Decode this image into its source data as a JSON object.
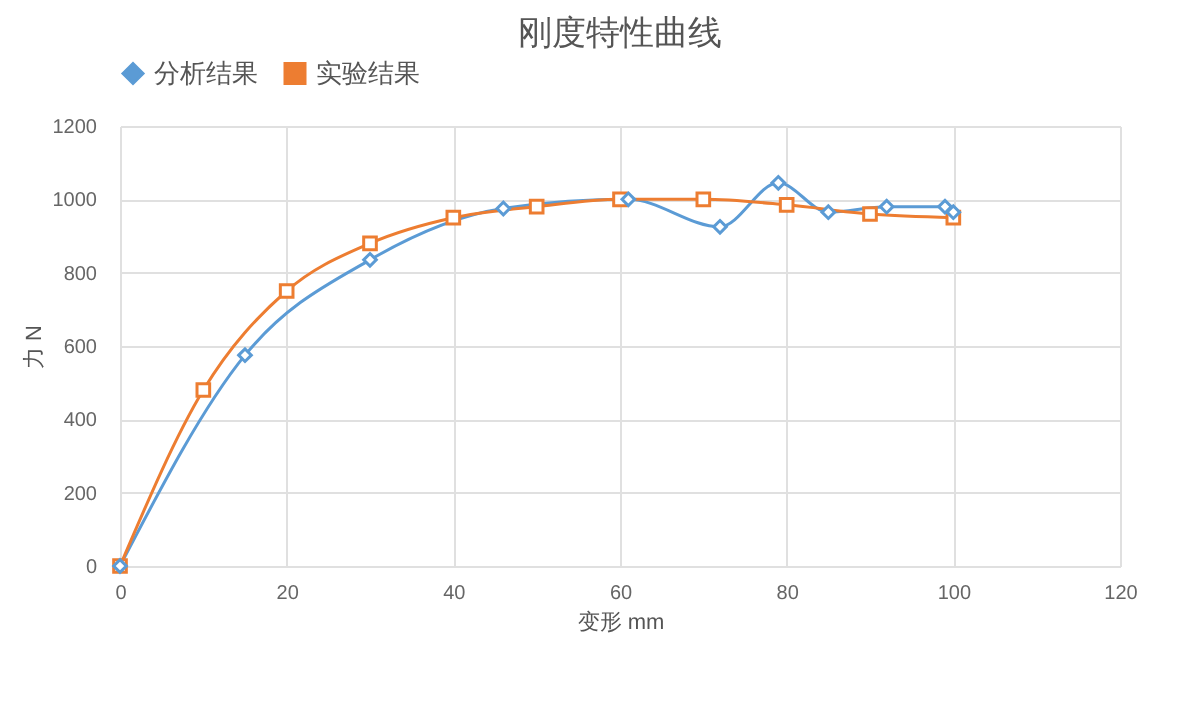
{
  "chart_data": {
    "type": "line",
    "title": "刚度特性曲线",
    "xlabel": "变形 mm",
    "ylabel": "力 N",
    "xlim": [
      0,
      120
    ],
    "xticks": [
      0,
      20,
      40,
      60,
      80,
      100,
      120
    ],
    "ylim": [
      0,
      1200
    ],
    "yticks": [
      0,
      200,
      400,
      600,
      800,
      1000,
      1200
    ],
    "grid": true,
    "legend": "top",
    "series": [
      {
        "name": "分析结果",
        "color": "#5b9bd5",
        "marker": "diamond",
        "x": [
          0,
          15,
          30,
          46,
          61,
          72,
          79,
          85,
          92,
          99,
          100
        ],
        "values": [
          0,
          575,
          835,
          975,
          1000,
          925,
          1045,
          965,
          980,
          980,
          965
        ]
      },
      {
        "name": "实验结果",
        "color": "#ed7d31",
        "marker": "square",
        "x": [
          0,
          10,
          20,
          30,
          40,
          50,
          60,
          70,
          80,
          90,
          100
        ],
        "values": [
          0,
          480,
          750,
          880,
          950,
          980,
          1000,
          1000,
          985,
          960,
          950
        ]
      }
    ]
  }
}
